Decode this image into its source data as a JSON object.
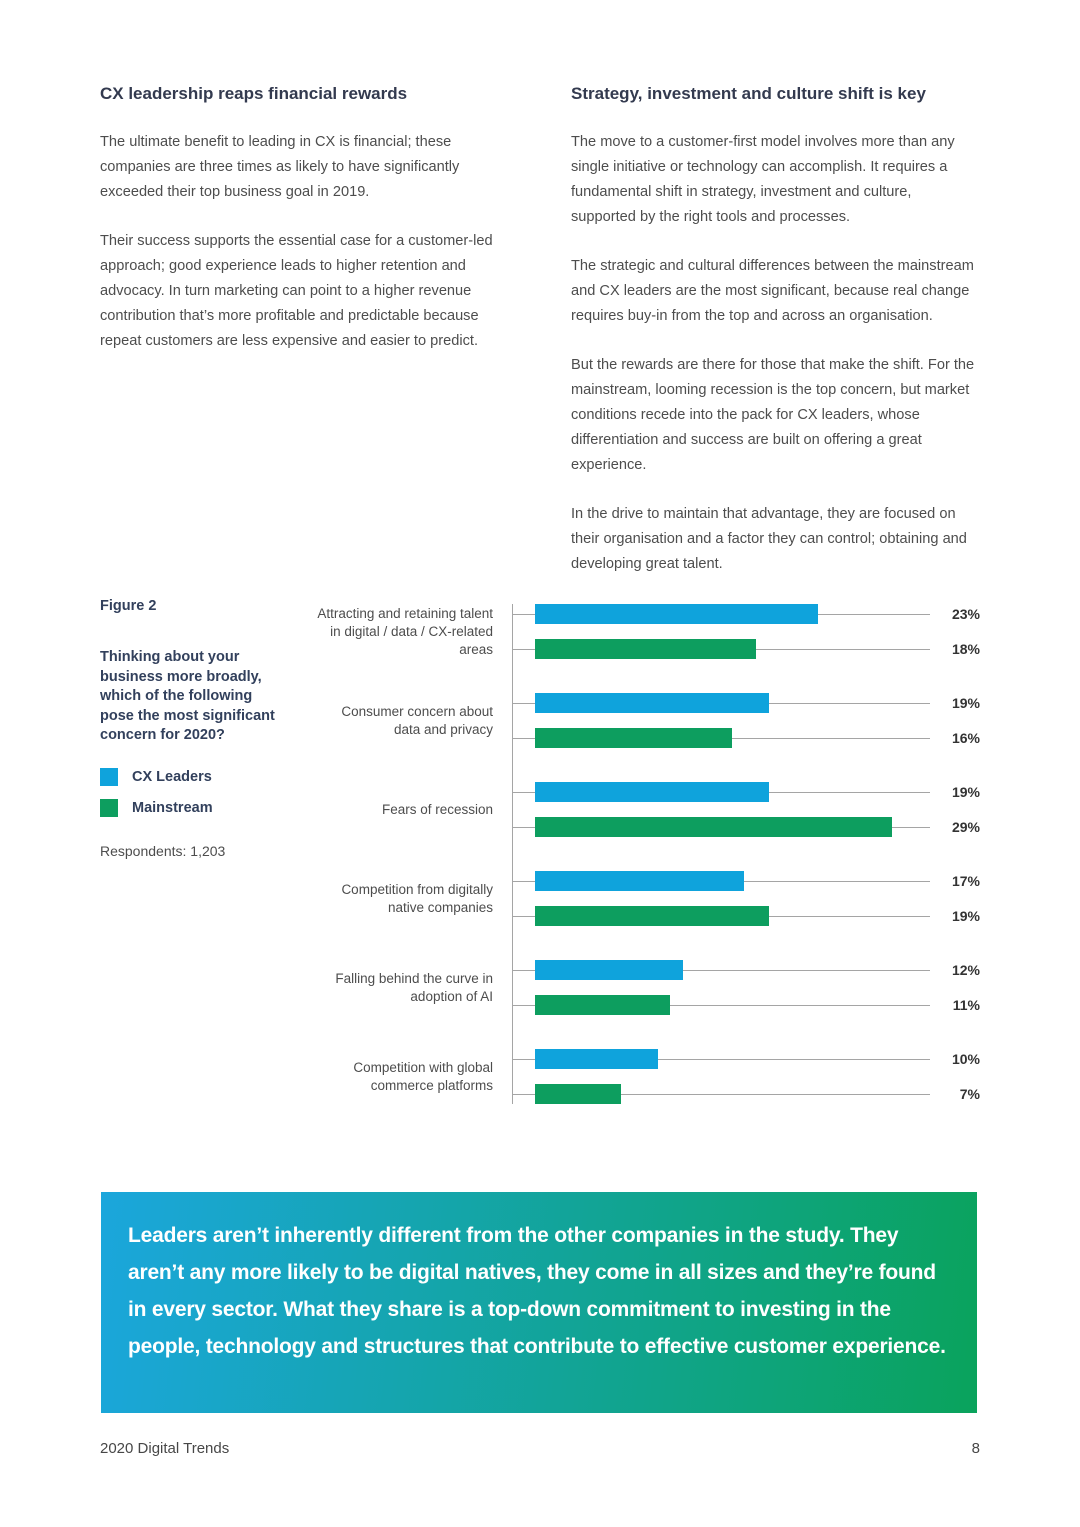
{
  "columns": {
    "left": {
      "heading": "CX leadership reaps financial rewards",
      "paragraphs": [
        "The ultimate benefit to leading in CX is financial; these companies are three times as likely to have significantly exceeded their top business goal in 2019.",
        "Their success supports the essential case for a customer-led approach; good experience leads to higher retention and advocacy. In turn marketing can point to a higher revenue contribution that’s more profitable and predictable because repeat customers are less expensive and easier to predict."
      ]
    },
    "right": {
      "heading": "Strategy, investment and culture shift is key",
      "paragraphs": [
        "The move to a customer-first model involves more than any single initiative or technology can accomplish. It requires a fundamental shift in strategy, investment and culture, supported by the right tools and processes.",
        "The strategic and cultural differences between the mainstream and CX leaders are the most significant, because real change requires buy-in from the top and across an organisation.",
        "But the rewards are there for those that make the shift. For the mainstream, looming recession is the top concern, but market conditions recede into the pack for CX leaders, whose differentiation and success are built on offering a great experience.",
        "In the drive to maintain that advantage, they are focused on their organisation and a factor they can control; obtaining and developing great talent."
      ]
    }
  },
  "figure": {
    "label": "Figure 2",
    "question": "Thinking about your business more broadly, which of the following pose the most significant concern for 2020?",
    "legend": [
      {
        "label": "CX Leaders",
        "color": "#0fa3dc"
      },
      {
        "label": "Mainstream",
        "color": "#0d9e5f"
      }
    ],
    "respondents": "Respondents: 1,203"
  },
  "chart_data": {
    "type": "bar",
    "orientation": "horizontal",
    "title": "Thinking about your business more broadly, which of the following pose the most significant concern for 2020?",
    "categories": [
      "Attracting and retaining talent in digital / data / CX-related areas",
      "Consumer concern about data and privacy",
      "Fears of recession",
      "Competition from digitally native companies",
      "Falling behind the curve in adoption of AI",
      "Competition with global commerce platforms"
    ],
    "series": [
      {
        "name": "CX Leaders",
        "color": "#0fa3dc",
        "values": [
          23,
          19,
          19,
          17,
          12,
          10
        ]
      },
      {
        "name": "Mainstream",
        "color": "#0d9e5f",
        "values": [
          18,
          16,
          29,
          19,
          11,
          7
        ]
      }
    ],
    "value_suffix": "%",
    "xlim": [
      0,
      34
    ],
    "grid": "per-bar baseline rules",
    "legend_position": "left sidebar",
    "value_labels": "right of each bar rule"
  },
  "quote": {
    "text": "Leaders aren’t inherently different from the other companies in the study. They aren’t any more likely to be digital natives, they come in all sizes and they’re found in every sector. What they share is a top-down commitment to investing in the people, technology and structures that contribute to effective customer experience.",
    "gradient_start": "#1ba6dc",
    "gradient_end": "#0aa35c"
  },
  "footer": {
    "left": "2020 Digital Trends",
    "page_number": "8"
  }
}
